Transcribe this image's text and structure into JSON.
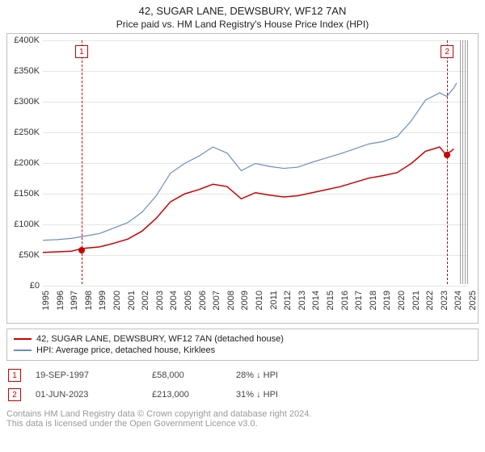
{
  "header": {
    "title": "42, SUGAR LANE, DEWSBURY, WF12 7AN",
    "subtitle": "Price paid vs. HM Land Registry's House Price Index (HPI)"
  },
  "chart": {
    "type": "line",
    "background_color": "#ffffff",
    "border_color": "#c0c0c0",
    "y_axis": {
      "ticks": [
        "£0",
        "£50K",
        "£100K",
        "£150K",
        "£200K",
        "£250K",
        "£300K",
        "£350K",
        "£400K"
      ],
      "min": 0,
      "max": 400,
      "step": 50,
      "label_fontsize": 11,
      "label_color": "#333333"
    },
    "x_axis": {
      "ticks": [
        "1995",
        "1996",
        "1997",
        "1998",
        "1999",
        "2000",
        "2001",
        "2002",
        "2003",
        "2004",
        "2005",
        "2006",
        "2007",
        "2008",
        "2009",
        "2010",
        "2011",
        "2012",
        "2013",
        "2014",
        "2015",
        "2016",
        "2017",
        "2018",
        "2019",
        "2020",
        "2021",
        "2022",
        "2023",
        "2024",
        "2025"
      ],
      "min": 1995,
      "max": 2025,
      "label_fontsize": 11,
      "label_color": "#333333"
    },
    "future_hatch": {
      "start_year": 2024.3,
      "color": "#a0a0a0"
    },
    "grid_color": "#e5e5e5",
    "series": [
      {
        "id": "price_paid",
        "label": "42, SUGAR LANE, DEWSBURY, WF12 7AN (detached house)",
        "color": "#cc0000",
        "line_width": 1.5,
        "data": [
          [
            1995,
            52
          ],
          [
            1996,
            53
          ],
          [
            1997,
            54
          ],
          [
            1997.72,
            58
          ],
          [
            1998,
            59
          ],
          [
            1999,
            61
          ],
          [
            2000,
            67
          ],
          [
            2001,
            74
          ],
          [
            2002,
            87
          ],
          [
            2003,
            108
          ],
          [
            2004,
            135
          ],
          [
            2005,
            148
          ],
          [
            2006,
            155
          ],
          [
            2007,
            164
          ],
          [
            2008,
            160
          ],
          [
            2009,
            140
          ],
          [
            2010,
            150
          ],
          [
            2011,
            146
          ],
          [
            2012,
            143
          ],
          [
            2013,
            145
          ],
          [
            2014,
            150
          ],
          [
            2015,
            155
          ],
          [
            2016,
            160
          ],
          [
            2017,
            167
          ],
          [
            2018,
            174
          ],
          [
            2019,
            178
          ],
          [
            2020,
            183
          ],
          [
            2021,
            198
          ],
          [
            2022,
            218
          ],
          [
            2023,
            225
          ],
          [
            2023.42,
            213
          ],
          [
            2023.8,
            218
          ],
          [
            2024,
            222
          ]
        ]
      },
      {
        "id": "hpi",
        "label": "HPI: Average price, detached house, Kirklees",
        "color": "#6a8fbf",
        "line_width": 1.2,
        "data": [
          [
            1995,
            72
          ],
          [
            1996,
            73
          ],
          [
            1997,
            75
          ],
          [
            1998,
            79
          ],
          [
            1999,
            83
          ],
          [
            2000,
            92
          ],
          [
            2001,
            101
          ],
          [
            2002,
            118
          ],
          [
            2003,
            145
          ],
          [
            2004,
            182
          ],
          [
            2005,
            198
          ],
          [
            2006,
            210
          ],
          [
            2007,
            225
          ],
          [
            2008,
            215
          ],
          [
            2009,
            186
          ],
          [
            2010,
            198
          ],
          [
            2011,
            193
          ],
          [
            2012,
            190
          ],
          [
            2013,
            192
          ],
          [
            2014,
            200
          ],
          [
            2015,
            207
          ],
          [
            2016,
            214
          ],
          [
            2017,
            222
          ],
          [
            2018,
            230
          ],
          [
            2019,
            234
          ],
          [
            2020,
            242
          ],
          [
            2021,
            268
          ],
          [
            2022,
            302
          ],
          [
            2023,
            314
          ],
          [
            2023.5,
            308
          ],
          [
            2024,
            322
          ],
          [
            2024.2,
            330
          ]
        ]
      }
    ],
    "annotations": [
      {
        "id": "1",
        "year": 1997.72,
        "value": 58,
        "color": "#cc0000",
        "line_color": "#cc0000",
        "dot_color": "#cc0000"
      },
      {
        "id": "2",
        "year": 2023.42,
        "value": 213,
        "color": "#cc0000",
        "line_color": "#cc0000",
        "dot_color": "#cc0000"
      }
    ]
  },
  "legend": {
    "items": [
      {
        "color": "#cc0000",
        "label": "42, SUGAR LANE, DEWSBURY, WF12 7AN (detached house)"
      },
      {
        "color": "#6a8fbf",
        "label": "HPI: Average price, detached house, Kirklees"
      }
    ]
  },
  "notes": [
    {
      "marker": "1",
      "marker_color": "#cc0000",
      "date": "19-SEP-1997",
      "price": "£58,000",
      "hpi": "28% ↓ HPI"
    },
    {
      "marker": "2",
      "marker_color": "#cc0000",
      "date": "01-JUN-2023",
      "price": "£213,000",
      "hpi": "31% ↓ HPI"
    }
  ],
  "copyright": {
    "line1": "Contains HM Land Registry data © Crown copyright and database right 2024.",
    "line2": "This data is licensed under the Open Government Licence v3.0."
  }
}
